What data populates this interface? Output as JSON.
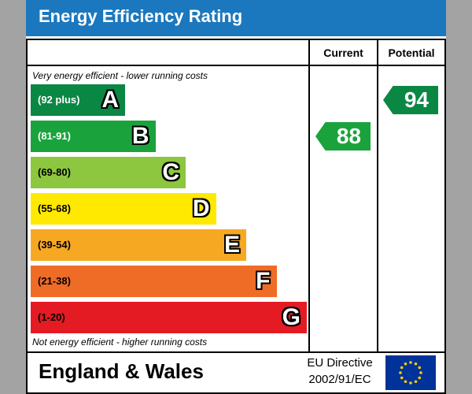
{
  "header": {
    "title": "Energy Efficiency Rating"
  },
  "columns": {
    "current": "Current",
    "potential": "Potential"
  },
  "notes": {
    "top": "Very energy efficient - lower running costs",
    "bottom": "Not energy efficient - higher running costs"
  },
  "chart_data": {
    "type": "bar",
    "title": "Energy Efficiency Rating",
    "categories": [
      "(92 plus)",
      "(81-91)",
      "(69-80)",
      "(55-68)",
      "(39-54)",
      "(21-38)",
      "(1-20)"
    ],
    "bands": [
      {
        "range": "(92 plus)",
        "letter": "A",
        "color": "#0b8744",
        "text_color": "#ffffff"
      },
      {
        "range": "(81-91)",
        "letter": "B",
        "color": "#1aa33c",
        "text_color": "#ffffff"
      },
      {
        "range": "(69-80)",
        "letter": "C",
        "color": "#8dc63f",
        "text_color": "#000000"
      },
      {
        "range": "(55-68)",
        "letter": "D",
        "color": "#ffe900",
        "text_color": "#000000"
      },
      {
        "range": "(39-54)",
        "letter": "E",
        "color": "#f7a823",
        "text_color": "#000000"
      },
      {
        "range": "(21-38)",
        "letter": "F",
        "color": "#ef6c26",
        "text_color": "#000000"
      },
      {
        "range": "(1-20)",
        "letter": "G",
        "color": "#e51b24",
        "text_color": "#000000"
      }
    ],
    "series": [
      {
        "name": "Current",
        "value": 88,
        "band": "B",
        "color": "#1aa33c"
      },
      {
        "name": "Potential",
        "value": 94,
        "band": "A",
        "color": "#0b8744"
      }
    ]
  },
  "footer": {
    "region": "England & Wales",
    "directive_line1": "EU Directive",
    "directive_line2": "2002/91/EC",
    "flag_icon": "eu-flag-icon",
    "flag_color": "#003399",
    "star_color": "#ffcc00"
  }
}
